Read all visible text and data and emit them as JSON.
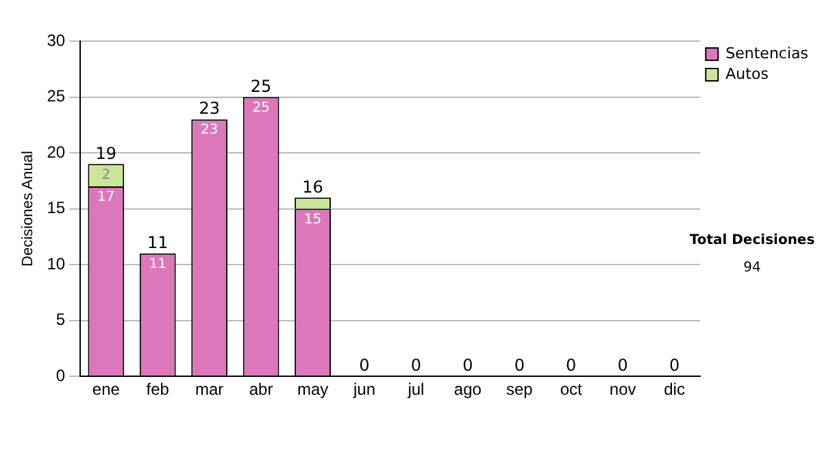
{
  "chart_data": {
    "type": "bar",
    "stacked": true,
    "ylabel": "Decisiones Anual",
    "categories": [
      "ene",
      "feb",
      "mar",
      "abr",
      "may",
      "jun",
      "jul",
      "ago",
      "sep",
      "oct",
      "nov",
      "dic"
    ],
    "series": [
      {
        "name": "Sentencias",
        "color": "#dd77bb",
        "values": [
          17,
          11,
          23,
          25,
          15,
          0,
          0,
          0,
          0,
          0,
          0,
          0
        ],
        "value_labels": [
          "17",
          "11",
          "23",
          "25",
          "15",
          null,
          null,
          null,
          null,
          null,
          null,
          null
        ]
      },
      {
        "name": "Autos",
        "color": "#cce699",
        "values": [
          2,
          0,
          0,
          0,
          1,
          0,
          0,
          0,
          0,
          0,
          0,
          0
        ],
        "value_labels": [
          "2",
          null,
          null,
          null,
          null,
          null,
          null,
          null,
          null,
          null,
          null,
          null
        ]
      }
    ],
    "totals": [
      "19",
      "11",
      "23",
      "25",
      "16",
      "0",
      "0",
      "0",
      "0",
      "0",
      "0",
      "0"
    ],
    "ylim": [
      0,
      30
    ],
    "yticks": [
      0,
      5,
      10,
      15,
      20,
      25,
      30
    ],
    "grid": "y",
    "legend": "right",
    "annotations": [
      "Total Decisiones",
      "94"
    ]
  }
}
